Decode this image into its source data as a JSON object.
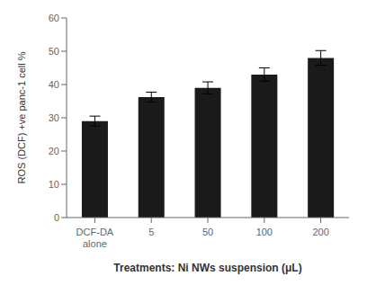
{
  "chart_data": {
    "type": "bar",
    "categories": [
      "DCF-DA\nalone",
      "5",
      "50",
      "100",
      "200"
    ],
    "values": [
      29.0,
      36.2,
      39.0,
      43.0,
      48.0
    ],
    "errors": [
      1.5,
      1.5,
      1.8,
      2.0,
      2.2
    ],
    "color": "#1a1a1a",
    "ylabel": "ROS (DCF) +ve panc-1 cell %",
    "xlabel": "Treatments: Ni NWs suspension (μL)",
    "ylim": [
      0,
      60
    ],
    "yticks": [
      0,
      10,
      20,
      30,
      40,
      50,
      60
    ],
    "grid": false
  }
}
